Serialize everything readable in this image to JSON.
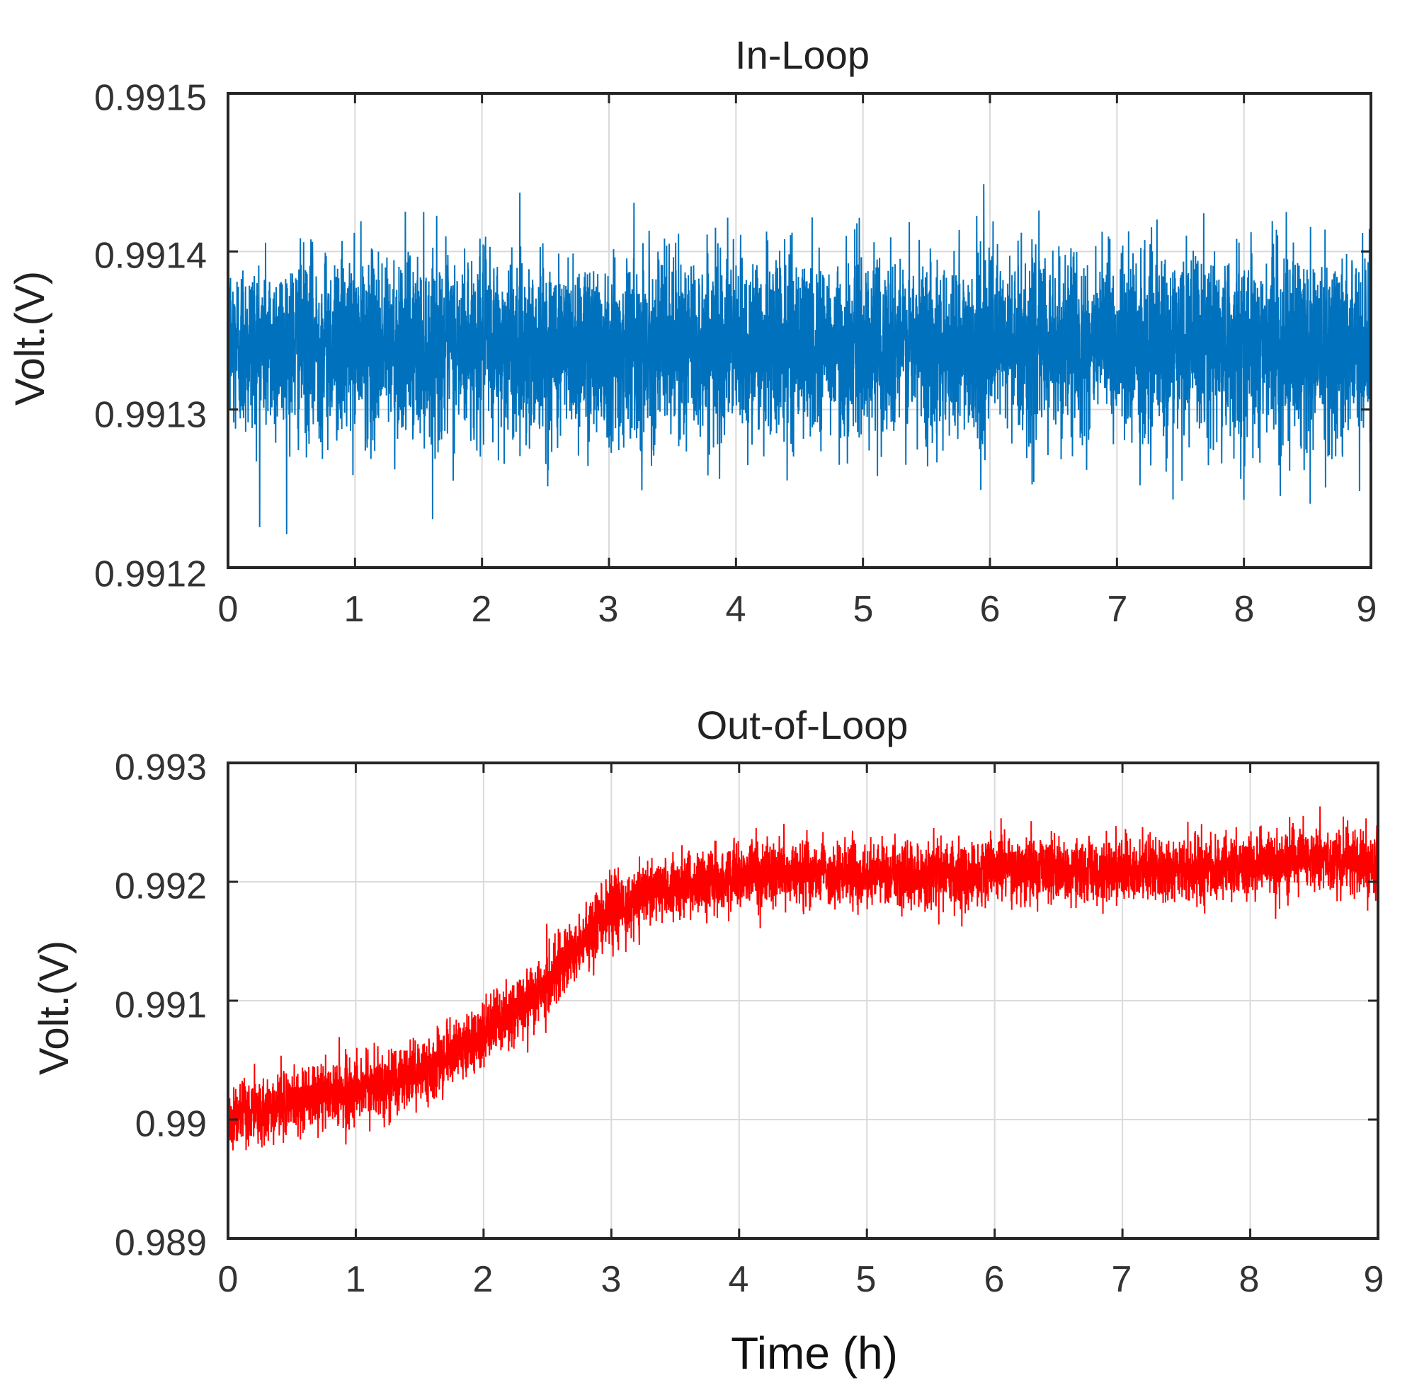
{
  "chart_data": [
    {
      "type": "line",
      "title": "In-Loop",
      "xlabel": "",
      "ylabel": "Volt.(V)",
      "xlim": [
        0,
        9
      ],
      "ylim": [
        0.9912,
        0.9915
      ],
      "xticks": [
        "0",
        "1",
        "2",
        "3",
        "4",
        "5",
        "6",
        "7",
        "8",
        "9"
      ],
      "yticks": [
        "0.9912",
        "0.9913",
        "0.9914",
        "0.9915"
      ],
      "grid": true,
      "series": [
        {
          "color": "#0072bd",
          "x": [
            0,
            0.5,
            1,
            1.5,
            2,
            2.5,
            3,
            3.5,
            4,
            4.5,
            5,
            5.5,
            6,
            6.5,
            7,
            7.5,
            8,
            8.5,
            9
          ],
          "y": [
            0.99134,
            0.99134,
            0.99134,
            0.99134,
            0.99134,
            0.99134,
            0.99134,
            0.99134,
            0.99134,
            0.99134,
            0.99134,
            0.99134,
            0.99134,
            0.99134,
            0.99134,
            0.99134,
            0.99134,
            0.99134,
            0.99134
          ],
          "noise_peak_to_peak": 0.00017
        }
      ]
    },
    {
      "type": "line",
      "title": "Out-of-Loop",
      "xlabel": "Time (h)",
      "ylabel": "Volt.(V)",
      "xlim": [
        0,
        9
      ],
      "ylim": [
        0.989,
        0.993
      ],
      "xticks": [
        "0",
        "1",
        "2",
        "3",
        "4",
        "5",
        "6",
        "7",
        "8",
        "9"
      ],
      "yticks": [
        "0.989",
        "0.99",
        "0.991",
        "0.992",
        "0.993"
      ],
      "grid": true,
      "series": [
        {
          "color": "#ff0000",
          "x": [
            0,
            0.5,
            1,
            1.5,
            2,
            2.5,
            3,
            3.5,
            4,
            4.5,
            5,
            5.5,
            6,
            6.5,
            7,
            7.5,
            8,
            8.5,
            9
          ],
          "y": [
            0.99,
            0.99015,
            0.99025,
            0.9904,
            0.9907,
            0.99115,
            0.9918,
            0.99195,
            0.99205,
            0.9921,
            0.99205,
            0.99205,
            0.9921,
            0.9921,
            0.9921,
            0.9921,
            0.99215,
            0.9922,
            0.99215
          ],
          "noise_peak_to_peak": 0.0008
        }
      ]
    }
  ]
}
